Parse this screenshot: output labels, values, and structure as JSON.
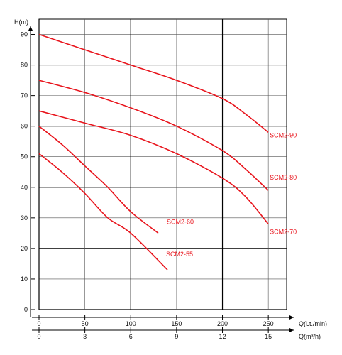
{
  "chart_data": {
    "type": "line",
    "ylabel": "H(m)",
    "xlabel_flow_lmin": "Q(Lt./min)",
    "xlabel_flow_m3h": "Q(m³/h)",
    "xlim": [
      0,
      270
    ],
    "ylim": [
      0,
      95
    ],
    "x_ticks_lmin": [
      0,
      50,
      100,
      150,
      200,
      250
    ],
    "x_ticks_m3h": [
      0,
      3,
      6,
      9,
      12,
      15
    ],
    "y_ticks": [
      0,
      10,
      20,
      30,
      40,
      50,
      60,
      70,
      80,
      90
    ],
    "grid": true,
    "line_color": "#e8141c",
    "series": [
      {
        "name": "SCM2-90",
        "x": [
          0,
          50,
          100,
          150,
          200,
          225,
          250
        ],
        "y": [
          90,
          85,
          80,
          75,
          69,
          64,
          58
        ]
      },
      {
        "name": "SCM2-80",
        "x": [
          0,
          50,
          100,
          150,
          200,
          225,
          250
        ],
        "y": [
          75,
          71,
          66,
          60,
          52,
          46,
          39
        ]
      },
      {
        "name": "SCM2-70",
        "x": [
          0,
          50,
          100,
          150,
          200,
          225,
          250
        ],
        "y": [
          65,
          61,
          57,
          51,
          43,
          37,
          28
        ]
      },
      {
        "name": "SCM2-60",
        "x": [
          0,
          25,
          50,
          75,
          100,
          130
        ],
        "y": [
          60,
          54,
          47,
          40,
          32,
          25
        ]
      },
      {
        "name": "SCM2-55",
        "x": [
          0,
          25,
          50,
          75,
          100,
          140
        ],
        "y": [
          51,
          45,
          38,
          30,
          25,
          13
        ]
      }
    ]
  }
}
